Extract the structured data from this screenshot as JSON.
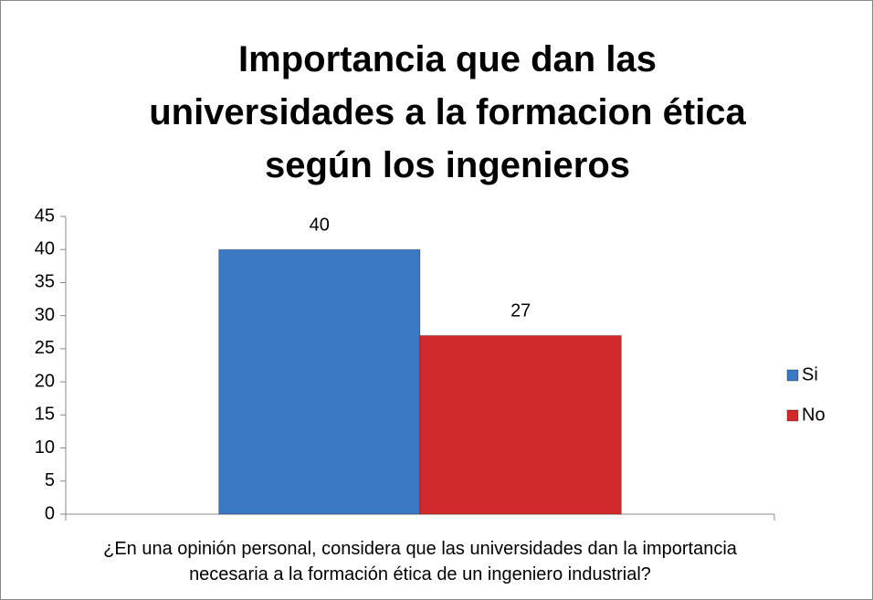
{
  "chart_data": {
    "type": "bar",
    "title": "Importancia que dan las universidades a la formacion ética según los ingenieros",
    "categories": [
      "¿En una opinión personal, considera que las universidades dan la importancia necesaria a la formación ética de un ingeniero industrial?"
    ],
    "series": [
      {
        "name": "Si",
        "color": "#3a78c3",
        "values": [
          40
        ]
      },
      {
        "name": "No",
        "color": "#d02a2a",
        "values": [
          27
        ]
      }
    ],
    "ylim": [
      0,
      45
    ],
    "yticks": [
      0,
      5,
      10,
      15,
      20,
      25,
      30,
      35,
      40,
      45
    ],
    "legend": "right"
  }
}
